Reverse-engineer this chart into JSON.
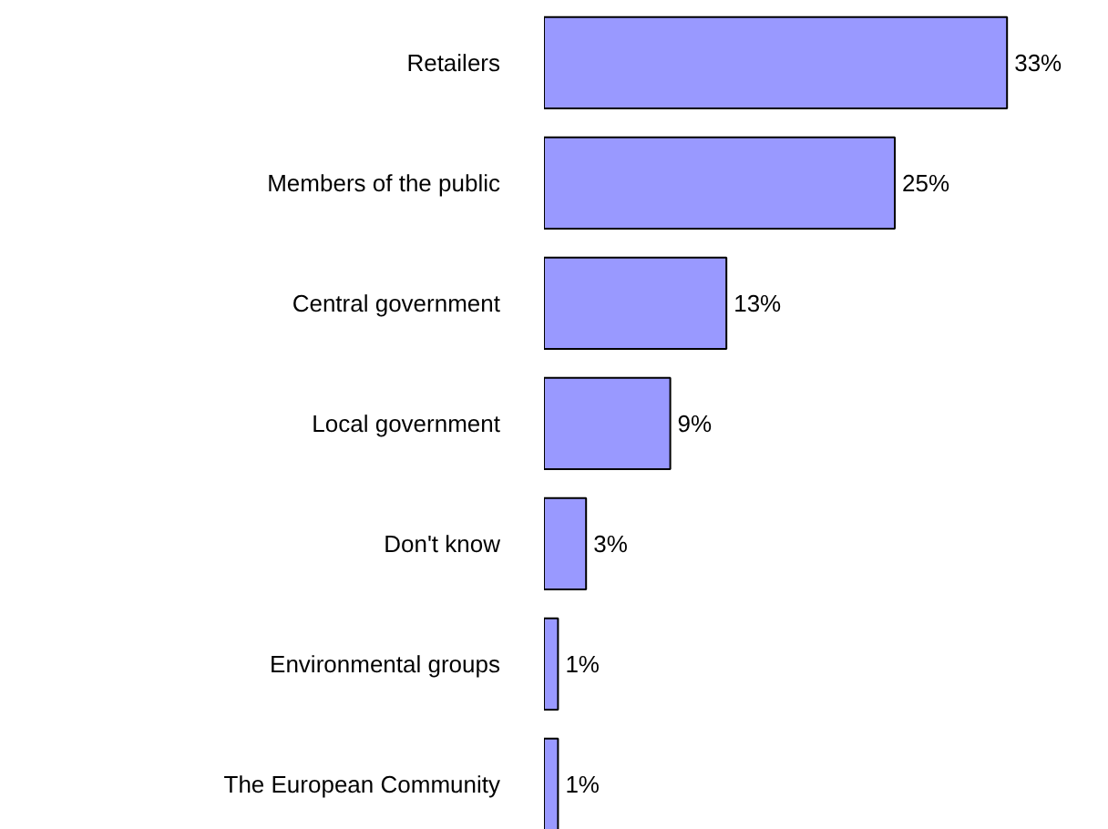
{
  "chart_data": {
    "type": "bar",
    "orientation": "horizontal",
    "categories": [
      "Retailers",
      "Members of the public",
      "Central government",
      "Local government",
      "Don't know",
      "Environmental groups",
      "The European Community"
    ],
    "values": [
      33,
      25,
      13,
      9,
      3,
      1,
      1
    ],
    "value_labels": [
      "33%",
      "25%",
      "13%",
      "9%",
      "3%",
      "1%",
      "1%"
    ],
    "color": "#9999ff"
  }
}
